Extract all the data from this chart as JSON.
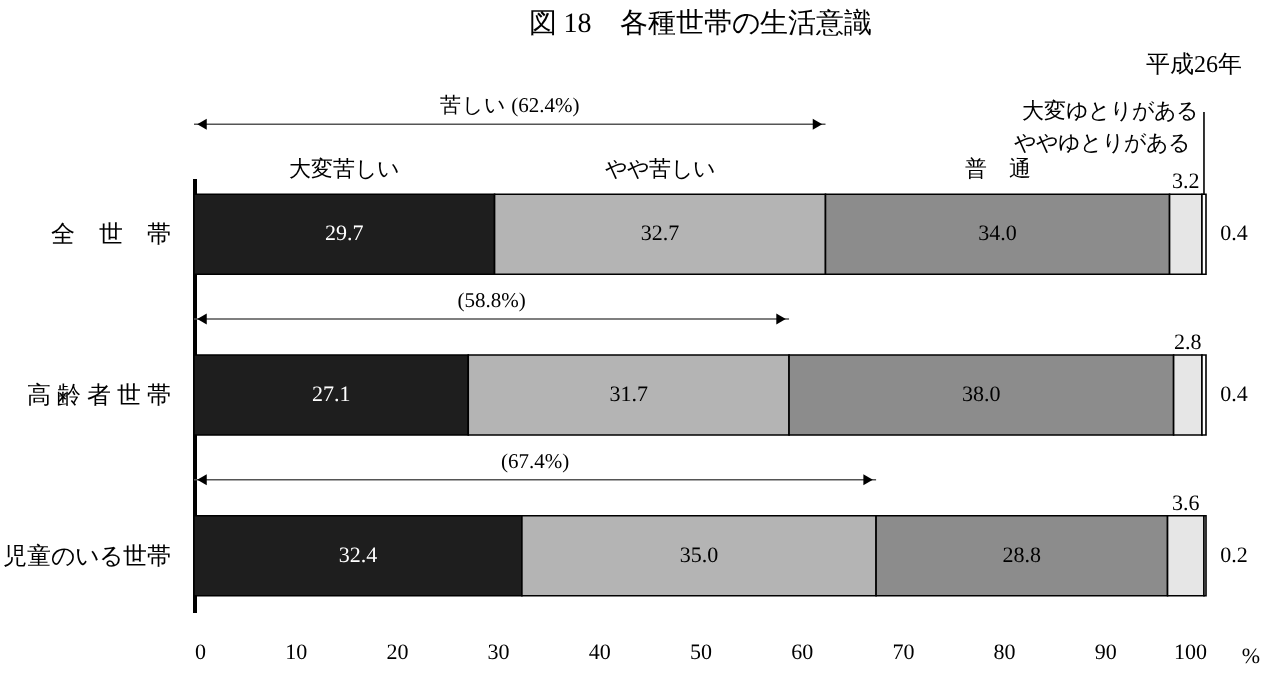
{
  "chart_data": {
    "type": "bar",
    "orientation": "horizontal",
    "stacked": true,
    "title": "図 18　各種世帯の生活意識",
    "subtitle": "平成26年",
    "xlabel": "%",
    "categories": [
      "全　世　帯",
      "高 齢 者 世 帯",
      "児童のいる世帯"
    ],
    "series": [
      {
        "name": "大変苦しい",
        "color": "#1e1e1e",
        "values": [
          29.7,
          27.1,
          32.4
        ],
        "value_labels": [
          "29.7",
          "27.1",
          "32.4"
        ]
      },
      {
        "name": "やや苦しい",
        "color": "#b4b4b4",
        "values": [
          32.7,
          31.7,
          35.0
        ],
        "value_labels": [
          "32.7",
          "31.7",
          "35.0"
        ]
      },
      {
        "name": "普　通",
        "color": "#8c8c8c",
        "values": [
          34.0,
          38.0,
          28.8
        ],
        "value_labels": [
          "34.0",
          "38.0",
          "28.8"
        ]
      },
      {
        "name": "ややゆとりがある",
        "color": "#e6e6e6",
        "values": [
          3.2,
          2.8,
          3.6
        ],
        "value_labels": [
          "3.2",
          "2.8",
          "3.6"
        ]
      },
      {
        "name": "大変ゆとりがある",
        "color": "#ffffff",
        "values": [
          0.4,
          0.4,
          0.2
        ],
        "value_labels": [
          "0.4",
          "0.4",
          "0.2"
        ]
      }
    ],
    "annotations": [
      "苦しい (62.4%)",
      "(58.8%)",
      "(67.4%)"
    ],
    "xlim": [
      0,
      100
    ],
    "xticks": [
      0,
      10,
      20,
      30,
      40,
      50,
      60,
      70,
      80,
      90,
      100
    ],
    "grid": false
  }
}
